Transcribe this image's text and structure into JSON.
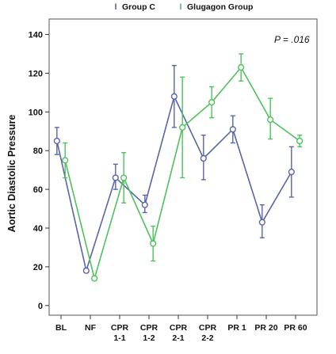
{
  "chart_data": {
    "type": "line",
    "title": "",
    "xlabel": "",
    "ylabel": "Aortic Diastolic Pressure",
    "ylim": [
      -5,
      148
    ],
    "yticks": [
      0,
      20,
      40,
      60,
      80,
      100,
      120,
      140
    ],
    "grid": false,
    "legend_position": "top",
    "annotation": "P = .016",
    "categories": [
      {
        "lines": [
          "BL"
        ]
      },
      {
        "lines": [
          "NF"
        ]
      },
      {
        "lines": [
          "CPR",
          "1-1"
        ]
      },
      {
        "lines": [
          "CPR",
          "1-2"
        ]
      },
      {
        "lines": [
          "CPR",
          "2-1"
        ]
      },
      {
        "lines": [
          "CPR",
          "2-2"
        ]
      },
      {
        "lines": [
          "PR 1"
        ]
      },
      {
        "lines": [
          "PR 20"
        ]
      },
      {
        "lines": [
          "PR 60"
        ]
      }
    ],
    "series": [
      {
        "name": "Group C",
        "legend_glyph": "I",
        "color": "#5a64a8",
        "x_offset": -0.14,
        "values": [
          85,
          18,
          66,
          52,
          108,
          76,
          91,
          43,
          69
        ],
        "error_low": [
          78,
          17,
          60,
          48,
          92,
          65,
          84,
          35,
          56
        ],
        "error_high": [
          92,
          19,
          73,
          57,
          124,
          88,
          98,
          52,
          82
        ]
      },
      {
        "name": "Glugagon Group",
        "legend_glyph": "I",
        "color": "#4cc25a",
        "x_offset": 0.14,
        "values": [
          75,
          14,
          66,
          32,
          92,
          105,
          123,
          96,
          85
        ],
        "error_low": [
          66,
          13,
          53,
          23,
          66,
          97,
          116,
          86,
          82
        ],
        "error_high": [
          84,
          15,
          79,
          41,
          118,
          113,
          130,
          107,
          88
        ]
      }
    ]
  }
}
